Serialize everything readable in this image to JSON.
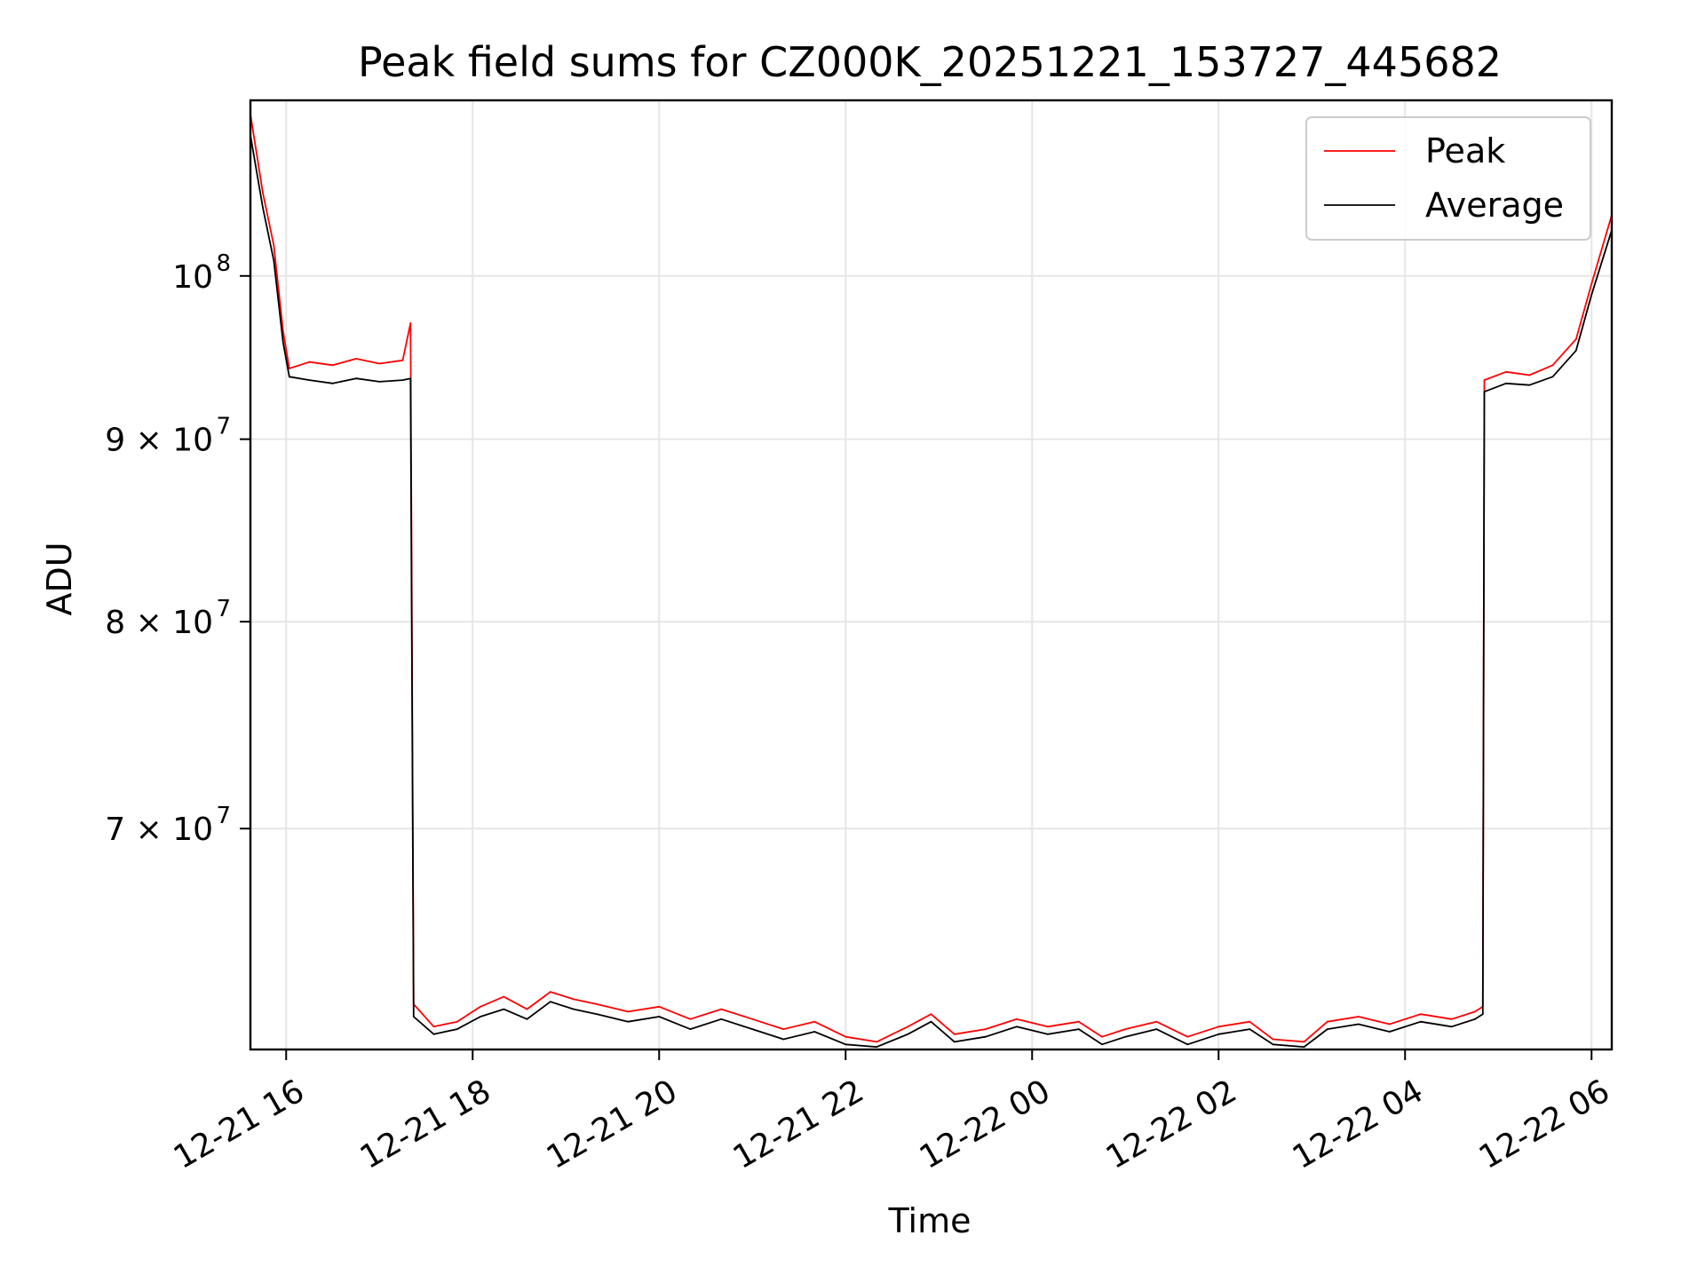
{
  "chart_data": {
    "type": "line",
    "title": "Peak field sums for CZ000K_20251221_153727_445682",
    "xlabel": "Time",
    "ylabel": "ADU",
    "x_range": [
      "2025-12-21 15:37",
      "2025-12-22 06:13"
    ],
    "ylim": [
      60700000,
      112000000
    ],
    "y_scale": "log",
    "grid": true,
    "legend_position": "top-right",
    "x_ticks": [
      {
        "time": "2025-12-21 16:00",
        "label": "12-21 16"
      },
      {
        "time": "2025-12-21 18:00",
        "label": "12-21 18"
      },
      {
        "time": "2025-12-21 20:00",
        "label": "12-21 20"
      },
      {
        "time": "2025-12-21 22:00",
        "label": "12-21 22"
      },
      {
        "time": "2025-12-22 00:00",
        "label": "12-22 00"
      },
      {
        "time": "2025-12-22 02:00",
        "label": "12-22 02"
      },
      {
        "time": "2025-12-22 04:00",
        "label": "12-22 04"
      },
      {
        "time": "2025-12-22 06:00",
        "label": "12-22 06"
      }
    ],
    "y_ticks": [
      {
        "value": 70000000,
        "base": "7 × 10",
        "exp": "7"
      },
      {
        "value": 80000000,
        "base": "8 × 10",
        "exp": "7"
      },
      {
        "value": 90000000,
        "base": "9 × 10",
        "exp": "7"
      },
      {
        "value": 100000000,
        "base": "10",
        "exp": "8"
      }
    ],
    "series": [
      {
        "name": "Peak",
        "color": "#ff0000",
        "points": [
          [
            "2025-12-21 15:37",
            111000000
          ],
          [
            "2025-12-21 15:45",
            105500000
          ],
          [
            "2025-12-21 15:52",
            102000000
          ],
          [
            "2025-12-21 15:58",
            96500000
          ],
          [
            "2025-12-21 16:02",
            94200000
          ],
          [
            "2025-12-21 16:15",
            94600000
          ],
          [
            "2025-12-21 16:30",
            94400000
          ],
          [
            "2025-12-21 16:45",
            94800000
          ],
          [
            "2025-12-21 17:00",
            94500000
          ],
          [
            "2025-12-21 17:15",
            94700000
          ],
          [
            "2025-12-21 17:20",
            97000000
          ],
          [
            "2025-12-21 17:22",
            62500000
          ],
          [
            "2025-12-21 17:35",
            61600000
          ],
          [
            "2025-12-21 17:50",
            61800000
          ],
          [
            "2025-12-21 18:05",
            62400000
          ],
          [
            "2025-12-21 18:20",
            62800000
          ],
          [
            "2025-12-21 18:35",
            62300000
          ],
          [
            "2025-12-21 18:50",
            63000000
          ],
          [
            "2025-12-21 19:05",
            62700000
          ],
          [
            "2025-12-21 19:20",
            62500000
          ],
          [
            "2025-12-21 19:40",
            62200000
          ],
          [
            "2025-12-21 20:00",
            62400000
          ],
          [
            "2025-12-21 20:20",
            61900000
          ],
          [
            "2025-12-21 20:40",
            62300000
          ],
          [
            "2025-12-21 21:00",
            61900000
          ],
          [
            "2025-12-21 21:20",
            61500000
          ],
          [
            "2025-12-21 21:40",
            61800000
          ],
          [
            "2025-12-21 22:00",
            61200000
          ],
          [
            "2025-12-21 22:20",
            61000000
          ],
          [
            "2025-12-21 22:40",
            61600000
          ],
          [
            "2025-12-21 22:55",
            62100000
          ],
          [
            "2025-12-21 23:10",
            61300000
          ],
          [
            "2025-12-21 23:30",
            61500000
          ],
          [
            "2025-12-21 23:50",
            61900000
          ],
          [
            "2025-12-22 00:10",
            61600000
          ],
          [
            "2025-12-22 00:30",
            61800000
          ],
          [
            "2025-12-22 00:45",
            61200000
          ],
          [
            "2025-12-22 01:00",
            61500000
          ],
          [
            "2025-12-22 01:20",
            61800000
          ],
          [
            "2025-12-22 01:40",
            61200000
          ],
          [
            "2025-12-22 02:00",
            61600000
          ],
          [
            "2025-12-22 02:20",
            61800000
          ],
          [
            "2025-12-22 02:35",
            61100000
          ],
          [
            "2025-12-22 02:55",
            61000000
          ],
          [
            "2025-12-22 03:10",
            61800000
          ],
          [
            "2025-12-22 03:30",
            62000000
          ],
          [
            "2025-12-22 03:50",
            61700000
          ],
          [
            "2025-12-22 04:10",
            62100000
          ],
          [
            "2025-12-22 04:30",
            61900000
          ],
          [
            "2025-12-22 04:45",
            62200000
          ],
          [
            "2025-12-22 04:50",
            62400000
          ],
          [
            "2025-12-22 04:51",
            93500000
          ],
          [
            "2025-12-22 05:05",
            94000000
          ],
          [
            "2025-12-22 05:20",
            93800000
          ],
          [
            "2025-12-22 05:35",
            94400000
          ],
          [
            "2025-12-22 05:50",
            96000000
          ],
          [
            "2025-12-22 06:00",
            99500000
          ],
          [
            "2025-12-22 06:13",
            104000000
          ]
        ]
      },
      {
        "name": "Average",
        "color": "#000000",
        "points": [
          [
            "2025-12-21 15:37",
            109500000
          ],
          [
            "2025-12-21 15:45",
            104500000
          ],
          [
            "2025-12-21 15:52",
            101000000
          ],
          [
            "2025-12-21 15:58",
            95800000
          ],
          [
            "2025-12-21 16:02",
            93700000
          ],
          [
            "2025-12-21 16:15",
            93500000
          ],
          [
            "2025-12-21 16:30",
            93300000
          ],
          [
            "2025-12-21 16:45",
            93600000
          ],
          [
            "2025-12-21 17:00",
            93400000
          ],
          [
            "2025-12-21 17:15",
            93500000
          ],
          [
            "2025-12-21 17:20",
            93600000
          ],
          [
            "2025-12-21 17:22",
            62000000
          ],
          [
            "2025-12-21 17:35",
            61300000
          ],
          [
            "2025-12-21 17:50",
            61500000
          ],
          [
            "2025-12-21 18:05",
            62000000
          ],
          [
            "2025-12-21 18:20",
            62300000
          ],
          [
            "2025-12-21 18:35",
            61900000
          ],
          [
            "2025-12-21 18:50",
            62600000
          ],
          [
            "2025-12-21 19:05",
            62300000
          ],
          [
            "2025-12-21 19:20",
            62100000
          ],
          [
            "2025-12-21 19:40",
            61800000
          ],
          [
            "2025-12-21 20:00",
            62000000
          ],
          [
            "2025-12-21 20:20",
            61500000
          ],
          [
            "2025-12-21 20:40",
            61900000
          ],
          [
            "2025-12-21 21:00",
            61500000
          ],
          [
            "2025-12-21 21:20",
            61100000
          ],
          [
            "2025-12-21 21:40",
            61400000
          ],
          [
            "2025-12-21 22:00",
            60900000
          ],
          [
            "2025-12-21 22:20",
            60800000
          ],
          [
            "2025-12-21 22:40",
            61300000
          ],
          [
            "2025-12-21 22:55",
            61800000
          ],
          [
            "2025-12-21 23:10",
            61000000
          ],
          [
            "2025-12-21 23:30",
            61200000
          ],
          [
            "2025-12-21 23:50",
            61600000
          ],
          [
            "2025-12-22 00:10",
            61300000
          ],
          [
            "2025-12-22 00:30",
            61500000
          ],
          [
            "2025-12-22 00:45",
            60900000
          ],
          [
            "2025-12-22 01:00",
            61200000
          ],
          [
            "2025-12-22 01:20",
            61500000
          ],
          [
            "2025-12-22 01:40",
            60900000
          ],
          [
            "2025-12-22 02:00",
            61300000
          ],
          [
            "2025-12-22 02:20",
            61500000
          ],
          [
            "2025-12-22 02:35",
            60900000
          ],
          [
            "2025-12-22 02:55",
            60800000
          ],
          [
            "2025-12-22 03:10",
            61500000
          ],
          [
            "2025-12-22 03:30",
            61700000
          ],
          [
            "2025-12-22 03:50",
            61400000
          ],
          [
            "2025-12-22 04:10",
            61800000
          ],
          [
            "2025-12-22 04:30",
            61600000
          ],
          [
            "2025-12-22 04:45",
            61900000
          ],
          [
            "2025-12-22 04:50",
            62100000
          ],
          [
            "2025-12-22 04:51",
            92800000
          ],
          [
            "2025-12-22 05:05",
            93300000
          ],
          [
            "2025-12-22 05:20",
            93200000
          ],
          [
            "2025-12-22 05:35",
            93700000
          ],
          [
            "2025-12-22 05:50",
            95300000
          ],
          [
            "2025-12-22 06:00",
            98800000
          ],
          [
            "2025-12-22 06:13",
            103000000
          ]
        ]
      }
    ]
  }
}
